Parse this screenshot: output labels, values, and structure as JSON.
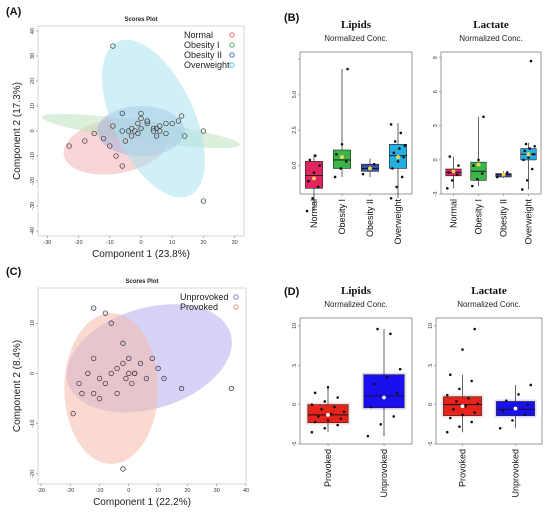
{
  "panels": {
    "A": "(A)",
    "B": "(B)",
    "C": "(C)",
    "D": "(D)"
  },
  "chart_data": [
    {
      "id": "A",
      "type": "scatter",
      "title": "Scores Plot",
      "xlabel": "Component 1 (23.8%)",
      "ylabel": "Component 2 (17.3%)",
      "xlim": [
        -33,
        33
      ],
      "ylim": [
        -42,
        42
      ],
      "xticks": [
        -30,
        -20,
        -10,
        0,
        10,
        20,
        30
      ],
      "yticks": [
        -40,
        -30,
        -20,
        -10,
        0,
        10,
        20,
        30,
        40
      ],
      "legend_position": "top-right",
      "series": [
        {
          "name": "Normal",
          "color": "#e8666d",
          "fill": "#f2b3b6",
          "ellipse": {
            "cx": -8,
            "cy": -6,
            "rx": 17,
            "ry": 11,
            "angle": -10
          },
          "points": [
            [
              -23,
              -6
            ],
            [
              -18,
              -4
            ],
            [
              -15,
              -1
            ],
            [
              -12,
              -3
            ],
            [
              -10,
              -6
            ],
            [
              -9,
              2
            ],
            [
              -8,
              -10
            ],
            [
              -6,
              -14
            ],
            [
              -5,
              -4
            ],
            [
              -3,
              -2
            ],
            [
              -2,
              0
            ]
          ]
        },
        {
          "name": "Obesity I",
          "color": "#4aa36b",
          "fill": "#bfe1bd",
          "ellipse": {
            "cx": 0,
            "cy": 0,
            "rx": 32,
            "ry": 4,
            "angle": 8
          },
          "points": [
            [
              -3,
              1
            ],
            [
              -1,
              3
            ],
            [
              0,
              5
            ],
            [
              2,
              3
            ],
            [
              4,
              1
            ],
            [
              6,
              0
            ],
            [
              8,
              3
            ],
            [
              12,
              4
            ],
            [
              14,
              -2
            ],
            [
              20,
              0
            ]
          ]
        },
        {
          "name": "Obesity II",
          "color": "#3f62b5",
          "fill": "#a7b4dc",
          "ellipse": {
            "cx": 0,
            "cy": 0,
            "rx": 14,
            "ry": 10,
            "angle": 0
          },
          "points": [
            [
              -6,
              7
            ],
            [
              -4,
              0
            ],
            [
              -1,
              -1
            ],
            [
              0,
              1
            ],
            [
              2,
              4
            ],
            [
              5,
              -2
            ],
            [
              5,
              1
            ]
          ]
        },
        {
          "name": "Overweight",
          "color": "#3cbfd9",
          "fill": "#a9e2ef",
          "ellipse": {
            "cx": 4,
            "cy": 5,
            "rx": 13,
            "ry": 34,
            "angle": -25
          },
          "points": [
            [
              -9,
              34
            ],
            [
              -6,
              0
            ],
            [
              0,
              7
            ],
            [
              2,
              4
            ],
            [
              4,
              0
            ],
            [
              6,
              2
            ],
            [
              8,
              -1
            ],
            [
              10,
              3
            ],
            [
              13,
              6
            ],
            [
              20,
              -28
            ]
          ]
        }
      ]
    },
    {
      "id": "B",
      "type": "box",
      "plots": [
        {
          "title": "Lipids",
          "subtitle": "Normalized Conc.",
          "ylim": [
            -2,
            8
          ],
          "yticks": [
            -2.5,
            0.0,
            2.5,
            5.0,
            7.5
          ],
          "ytick_labels": [
            "",
            "0.0",
            "2.5",
            "5.0",
            ""
          ],
          "categories": [
            "Normal",
            "Obesity I",
            "Obesity II",
            "Overweight"
          ],
          "colors": [
            "#e0245e",
            "#3bb44a",
            "#3750a8",
            "#27aee0"
          ],
          "boxes": [
            {
              "min": -3.2,
              "q1": -1.6,
              "median": -0.7,
              "q3": 0.3,
              "max": 0.8,
              "mean": -0.9,
              "points": [
                -3.2,
                -2.3,
                -1.5,
                -1.1,
                -0.5,
                0.0,
                0.4,
                0.7
              ]
            },
            {
              "min": -0.8,
              "q1": -0.2,
              "median": 0.4,
              "q3": 1.1,
              "max": 6.8,
              "mean": 0.6,
              "points": [
                -0.8,
                -0.2,
                0.3,
                0.8,
                1.5,
                6.8
              ]
            },
            {
              "min": -0.8,
              "q1": -0.4,
              "median": -0.2,
              "q3": 0.1,
              "max": 0.5,
              "mean": -0.2,
              "points": [
                -0.6,
                -0.2,
                0.1
              ]
            },
            {
              "min": -2.3,
              "q1": -0.2,
              "median": 0.7,
              "q3": 1.5,
              "max": 3.0,
              "mean": 0.6,
              "points": [
                -2.3,
                -1.5,
                -0.8,
                -0.2,
                0.3,
                0.6,
                0.9,
                1.2,
                1.4,
                1.7,
                2.3,
                2.9
              ]
            }
          ]
        },
        {
          "title": "Lactate",
          "subtitle": "Normalized Conc.",
          "ylim": [
            -3,
            9.5
          ],
          "yticks": [
            -3,
            0,
            3,
            6,
            9
          ],
          "ytick_labels": [
            "-3",
            "0",
            "3",
            "6",
            "9"
          ],
          "categories": [
            "Normal",
            "Obesity I",
            "Obesity II",
            "Overweight"
          ],
          "colors": [
            "#e0245e",
            "#3bb44a",
            "#3750a8",
            "#27aee0"
          ],
          "boxes": [
            {
              "min": -2.5,
              "q1": -1.4,
              "median": -1.1,
              "q3": -0.8,
              "max": 0.3,
              "mean": -1.0,
              "points": [
                -2.5,
                -1.8,
                -1.3,
                -1.1,
                -0.9,
                -0.5,
                0.3
              ]
            },
            {
              "min": -2.3,
              "q1": -1.8,
              "median": -1.0,
              "q3": -0.2,
              "max": 3.8,
              "mean": -0.4,
              "points": [
                -2.3,
                -1.7,
                -1.2,
                -0.5,
                0.0,
                3.8
              ]
            },
            {
              "min": -1.6,
              "q1": -1.5,
              "median": -1.3,
              "q3": -1.2,
              "max": -1.0,
              "mean": -1.3,
              "points": [
                -1.5,
                -1.3,
                -1.1
              ]
            },
            {
              "min": -2.6,
              "q1": 0.0,
              "median": 0.5,
              "q3": 1.0,
              "max": 1.5,
              "mean": 0.5,
              "points": [
                -2.6,
                -1.8,
                -0.8,
                0.0,
                0.2,
                0.5,
                0.8,
                1.0,
                1.2,
                1.4,
                8.7
              ]
            }
          ]
        }
      ]
    },
    {
      "id": "C",
      "type": "scatter",
      "title": "Scores Plot",
      "xlabel": "Component 1 (22.2%)",
      "ylabel": "Component 2 (8.4%)",
      "xlim": [
        -31,
        40
      ],
      "ylim": [
        -22,
        17
      ],
      "xticks": [
        -30,
        -20,
        -10,
        0,
        10,
        20,
        30,
        40
      ],
      "yticks": [
        -20,
        -10,
        0,
        10
      ],
      "legend_position": "top-right",
      "series": [
        {
          "name": "Unprovoked",
          "color": "#7c70d9",
          "fill": "#b4aef0",
          "ellipse": {
            "cx": 7,
            "cy": 3,
            "rx": 29,
            "ry": 10,
            "angle": -17
          },
          "points": [
            [
              -12,
              13
            ],
            [
              -8,
              12
            ],
            [
              -6,
              10
            ],
            [
              -2,
              6
            ],
            [
              0,
              3
            ],
            [
              2,
              0
            ],
            [
              4,
              2
            ],
            [
              6,
              -1
            ],
            [
              8,
              3
            ],
            [
              10,
              1
            ],
            [
              12,
              -1
            ],
            [
              18,
              -3
            ],
            [
              35,
              -3
            ]
          ]
        },
        {
          "name": "Provoked",
          "color": "#e08a6f",
          "fill": "#f5b9a9",
          "ellipse": {
            "cx": -6,
            "cy": -3,
            "rx": 16,
            "ry": 15,
            "angle": 0
          },
          "points": [
            [
              -19,
              -8
            ],
            [
              -17,
              -2
            ],
            [
              -16,
              -4
            ],
            [
              -14,
              0
            ],
            [
              -12,
              3
            ],
            [
              -12,
              -4
            ],
            [
              -10,
              -1
            ],
            [
              -10,
              -5
            ],
            [
              -8,
              -2
            ],
            [
              -6,
              0
            ],
            [
              -4,
              1
            ],
            [
              -4,
              -4
            ],
            [
              -2,
              2
            ],
            [
              -1,
              -1
            ],
            [
              0,
              0
            ],
            [
              1,
              -2
            ],
            [
              2,
              0
            ],
            [
              -2,
              -19
            ]
          ]
        }
      ]
    },
    {
      "id": "D",
      "type": "box",
      "plots": [
        {
          "title": "Lipids",
          "subtitle": "Normalized Conc.",
          "ylim": [
            -5,
            11
          ],
          "yticks": [
            -5,
            0,
            5,
            10
          ],
          "ytick_labels": [
            "-5",
            "0",
            "5",
            "10"
          ],
          "categories": [
            "Provoked",
            "Unprovoked"
          ],
          "colors": [
            "#e8231c",
            "#1a0ff0"
          ],
          "boxes": [
            {
              "min": -3.5,
              "q1": -2.3,
              "median": -1.3,
              "q3": 0.0,
              "max": 2.2,
              "mean": -1.3,
              "points": [
                -3.5,
                -3.0,
                -2.6,
                -2.2,
                -2.0,
                -1.8,
                -1.5,
                -1.2,
                -0.9,
                -0.6,
                -0.3,
                0.0,
                0.4,
                0.9,
                1.5,
                2.2
              ]
            },
            {
              "min": -4.0,
              "q1": -0.4,
              "median": 1.1,
              "q3": 3.8,
              "max": 9.6,
              "mean": 0.9,
              "points": [
                -4.0,
                -2.5,
                -1.5,
                -0.3,
                0.8,
                1.5,
                2.6,
                3.5,
                4.5,
                9.6,
                9.0
              ]
            }
          ]
        },
        {
          "title": "Lactate",
          "subtitle": "Normalized Conc.",
          "ylim": [
            -5,
            11
          ],
          "yticks": [
            -5,
            0,
            5,
            10
          ],
          "ytick_labels": [
            "-5",
            "0",
            "5",
            "10"
          ],
          "categories": [
            "Provoked",
            "Unprovoked"
          ],
          "colors": [
            "#e8231c",
            "#1a0ff0"
          ],
          "boxes": [
            {
              "min": -3.5,
              "q1": -1.4,
              "median": 0.0,
              "q3": 1.0,
              "max": 3.8,
              "mean": -0.2,
              "points": [
                -3.5,
                -2.8,
                -2.2,
                -1.7,
                -1.3,
                -1.0,
                -0.6,
                -0.2,
                0.1,
                0.4,
                0.8,
                1.2,
                2.0,
                3.0,
                3.8,
                7.0,
                9.6
              ]
            },
            {
              "min": -3.0,
              "q1": -1.4,
              "median": -0.6,
              "q3": 0.4,
              "max": 2.5,
              "mean": -0.5,
              "points": [
                -3.0,
                -2.0,
                -1.3,
                -0.8,
                -0.4,
                0.0,
                0.5,
                1.3,
                2.5
              ]
            }
          ]
        }
      ]
    }
  ]
}
